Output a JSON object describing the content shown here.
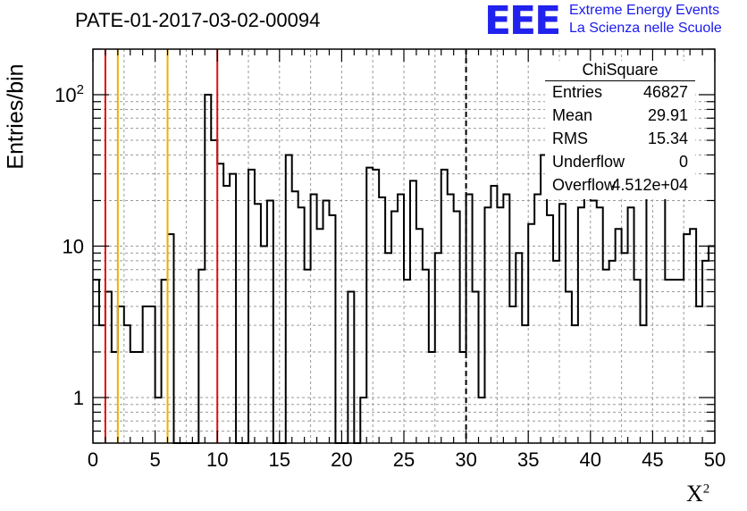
{
  "title": "PATE-01-2017-03-02-00094",
  "ylabel": "Entries/bin",
  "xlabel_base": "X",
  "xlabel_sup": "2",
  "logo": {
    "mark": "EEE",
    "line1": "Extreme Energy Events",
    "line2": "La Scienza nelle Scuole",
    "color": "#2222ee"
  },
  "stats": {
    "name": "ChiSquare",
    "rows": [
      {
        "key": "Entries",
        "value": "46827"
      },
      {
        "key": "Mean",
        "value": "29.91"
      },
      {
        "key": "RMS",
        "value": "15.34"
      },
      {
        "key": "Underflow",
        "value": "0"
      },
      {
        "key": "Overflow",
        "value": "4.512e+04"
      }
    ]
  },
  "chart_data": {
    "type": "histogram",
    "log_y": true,
    "grid": true,
    "xlim": [
      0,
      50
    ],
    "ylim": [
      0.5,
      200
    ],
    "x_ticks": [
      0,
      5,
      10,
      15,
      20,
      25,
      30,
      35,
      40,
      45,
      50
    ],
    "y_ticks": [
      {
        "value": 1,
        "label": "1"
      },
      {
        "value": 10,
        "label": "10"
      },
      {
        "value": 100,
        "label": "10^2"
      }
    ],
    "bin_width": 0.5,
    "values": [
      6,
      3,
      5,
      2,
      4,
      3,
      2,
      2,
      4,
      4,
      1,
      6,
      12,
      0,
      0,
      0,
      0,
      7,
      100,
      50,
      35,
      25,
      30,
      0,
      0,
      32,
      19,
      10,
      20,
      0,
      0,
      40,
      23,
      18,
      7,
      22,
      13,
      20,
      16,
      0,
      0,
      5,
      0,
      1,
      33,
      32,
      21,
      9,
      17,
      22,
      6,
      27,
      13,
      7,
      2,
      9,
      32,
      22,
      17,
      2,
      22,
      5,
      1,
      18,
      25,
      18,
      22,
      4,
      9,
      3,
      14,
      22,
      40,
      16,
      8,
      19,
      5,
      3,
      18,
      27,
      20,
      18,
      7,
      8,
      13,
      9,
      18,
      6,
      3,
      32,
      22,
      22,
      6,
      6,
      6,
      12,
      13,
      4,
      8,
      10
    ],
    "markers": [
      {
        "x": 1,
        "color": "#e01010",
        "style": "solid"
      },
      {
        "x": 2,
        "color": "#f0b000",
        "style": "solid"
      },
      {
        "x": 6,
        "color": "#f0b000",
        "style": "solid"
      },
      {
        "x": 10,
        "color": "#e01010",
        "style": "solid"
      },
      {
        "x": 30,
        "color": "#000000",
        "style": "dashed"
      }
    ]
  }
}
